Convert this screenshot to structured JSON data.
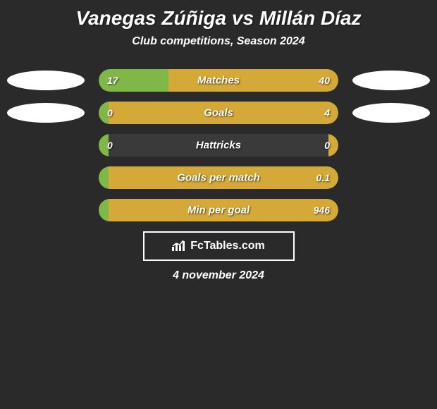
{
  "title": "Vanegas Zúñiga vs Millán Díaz",
  "subtitle": "Club competitions, Season 2024",
  "background_color": "#2a2a2a",
  "bar_bg_color": "#3a3a3a",
  "left_color": "#7fb848",
  "right_color": "#d4a937",
  "ellipse_colors": {
    "row0_left": "#ffffff",
    "row0_right": "#ffffff",
    "row1_left": "#ffffff",
    "row1_right": "#ffffff"
  },
  "rows": [
    {
      "label": "Matches",
      "left_val": "17",
      "right_val": "40",
      "left_pct": 29,
      "right_pct": 71,
      "show_ellipse": true
    },
    {
      "label": "Goals",
      "left_val": "0",
      "right_val": "4",
      "left_pct": 4,
      "right_pct": 96,
      "show_ellipse": true
    },
    {
      "label": "Hattricks",
      "left_val": "0",
      "right_val": "0",
      "left_pct": 4,
      "right_pct": 4,
      "show_ellipse": false
    },
    {
      "label": "Goals per match",
      "left_val": "",
      "right_val": "0.1",
      "left_pct": 4,
      "right_pct": 96,
      "show_ellipse": false
    },
    {
      "label": "Min per goal",
      "left_val": "",
      "right_val": "946",
      "left_pct": 4,
      "right_pct": 96,
      "show_ellipse": false
    }
  ],
  "logo_text": "FcTables.com",
  "date": "4 november 2024"
}
